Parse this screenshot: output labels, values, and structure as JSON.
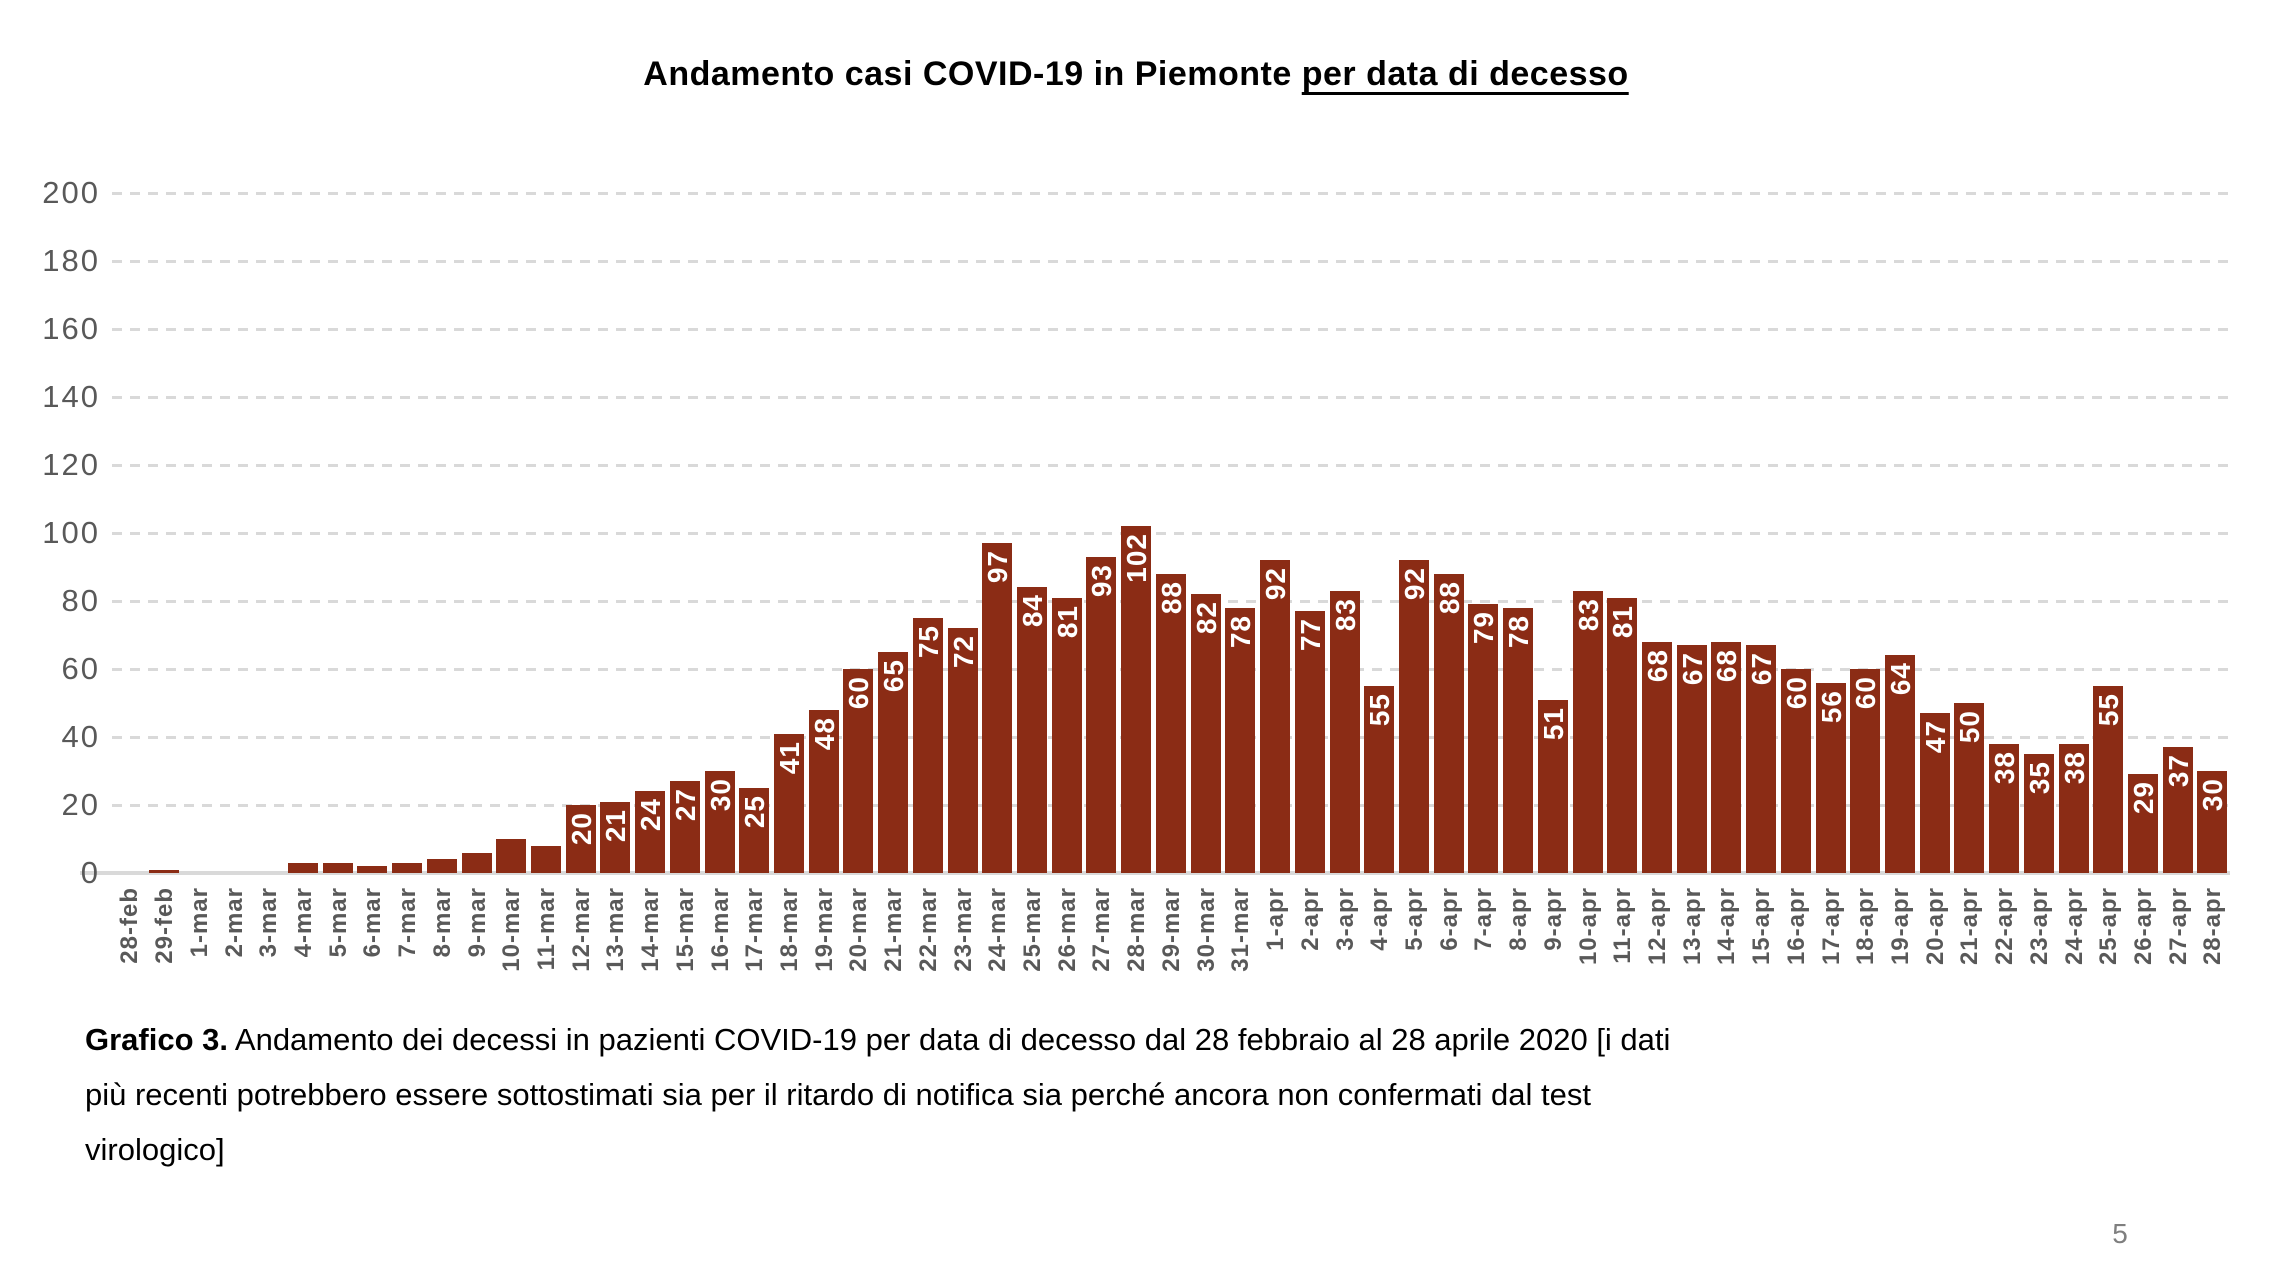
{
  "title": {
    "main": "Andamento casi COVID-19 in Piemonte ",
    "underlined": "per data di decesso"
  },
  "caption": {
    "bold_prefix": "Grafico 3.",
    "line1_rest": " Andamento dei decessi in pazienti COVID-19 per data di decesso dal 28 febbraio al 28 aprile 2020 [i dati",
    "line2": "più recenti potrebbero essere sottostimati sia per il ritardo di notifica sia perché ancora non confermati dal test",
    "line3": "virologico]"
  },
  "page": {
    "page_number": "5"
  },
  "chart_data": {
    "type": "bar",
    "title": "Andamento casi COVID-19 in Piemonte per data di decesso",
    "xlabel": "",
    "ylabel": "",
    "ylim": [
      0,
      200
    ],
    "ytick_interval": 20,
    "grid": "horizontal-dashed",
    "legend": "none",
    "bar_color": "#8B2C15",
    "bar_value_label_color": "#ffffff",
    "axis_text_color": "#595959",
    "gridline_color": "#d9d9d9",
    "value_labels_shown_from": 20,
    "categories": [
      "28-feb",
      "29-feb",
      "1-mar",
      "2-mar",
      "3-mar",
      "4-mar",
      "5-mar",
      "6-mar",
      "7-mar",
      "8-mar",
      "9-mar",
      "10-mar",
      "11-mar",
      "12-mar",
      "13-mar",
      "14-mar",
      "15-mar",
      "16-mar",
      "17-mar",
      "18-mar",
      "19-mar",
      "20-mar",
      "21-mar",
      "22-mar",
      "23-mar",
      "24-mar",
      "25-mar",
      "26-mar",
      "27-mar",
      "28-mar",
      "29-mar",
      "30-mar",
      "31-mar",
      "1-apr",
      "2-apr",
      "3-apr",
      "4-apr",
      "5-apr",
      "6-apr",
      "7-apr",
      "8-apr",
      "9-apr",
      "10-apr",
      "11-apr",
      "12-apr",
      "13-apr",
      "14-apr",
      "15-apr",
      "16-apr",
      "17-apr",
      "18-apr",
      "19-apr",
      "20-apr",
      "21-apr",
      "22-apr",
      "23-apr",
      "24-apr",
      "25-apr",
      "26-apr",
      "27-apr",
      "28-apr"
    ],
    "values": [
      0,
      1,
      0,
      0,
      0,
      3,
      3,
      2,
      3,
      4,
      6,
      10,
      8,
      20,
      21,
      24,
      27,
      30,
      25,
      41,
      48,
      60,
      65,
      75,
      72,
      97,
      84,
      81,
      93,
      102,
      88,
      82,
      78,
      92,
      77,
      83,
      55,
      92,
      88,
      79,
      78,
      51,
      83,
      81,
      68,
      67,
      68,
      67,
      60,
      56,
      60,
      64,
      47,
      50,
      38,
      35,
      38,
      55,
      29,
      37,
      30
    ]
  }
}
